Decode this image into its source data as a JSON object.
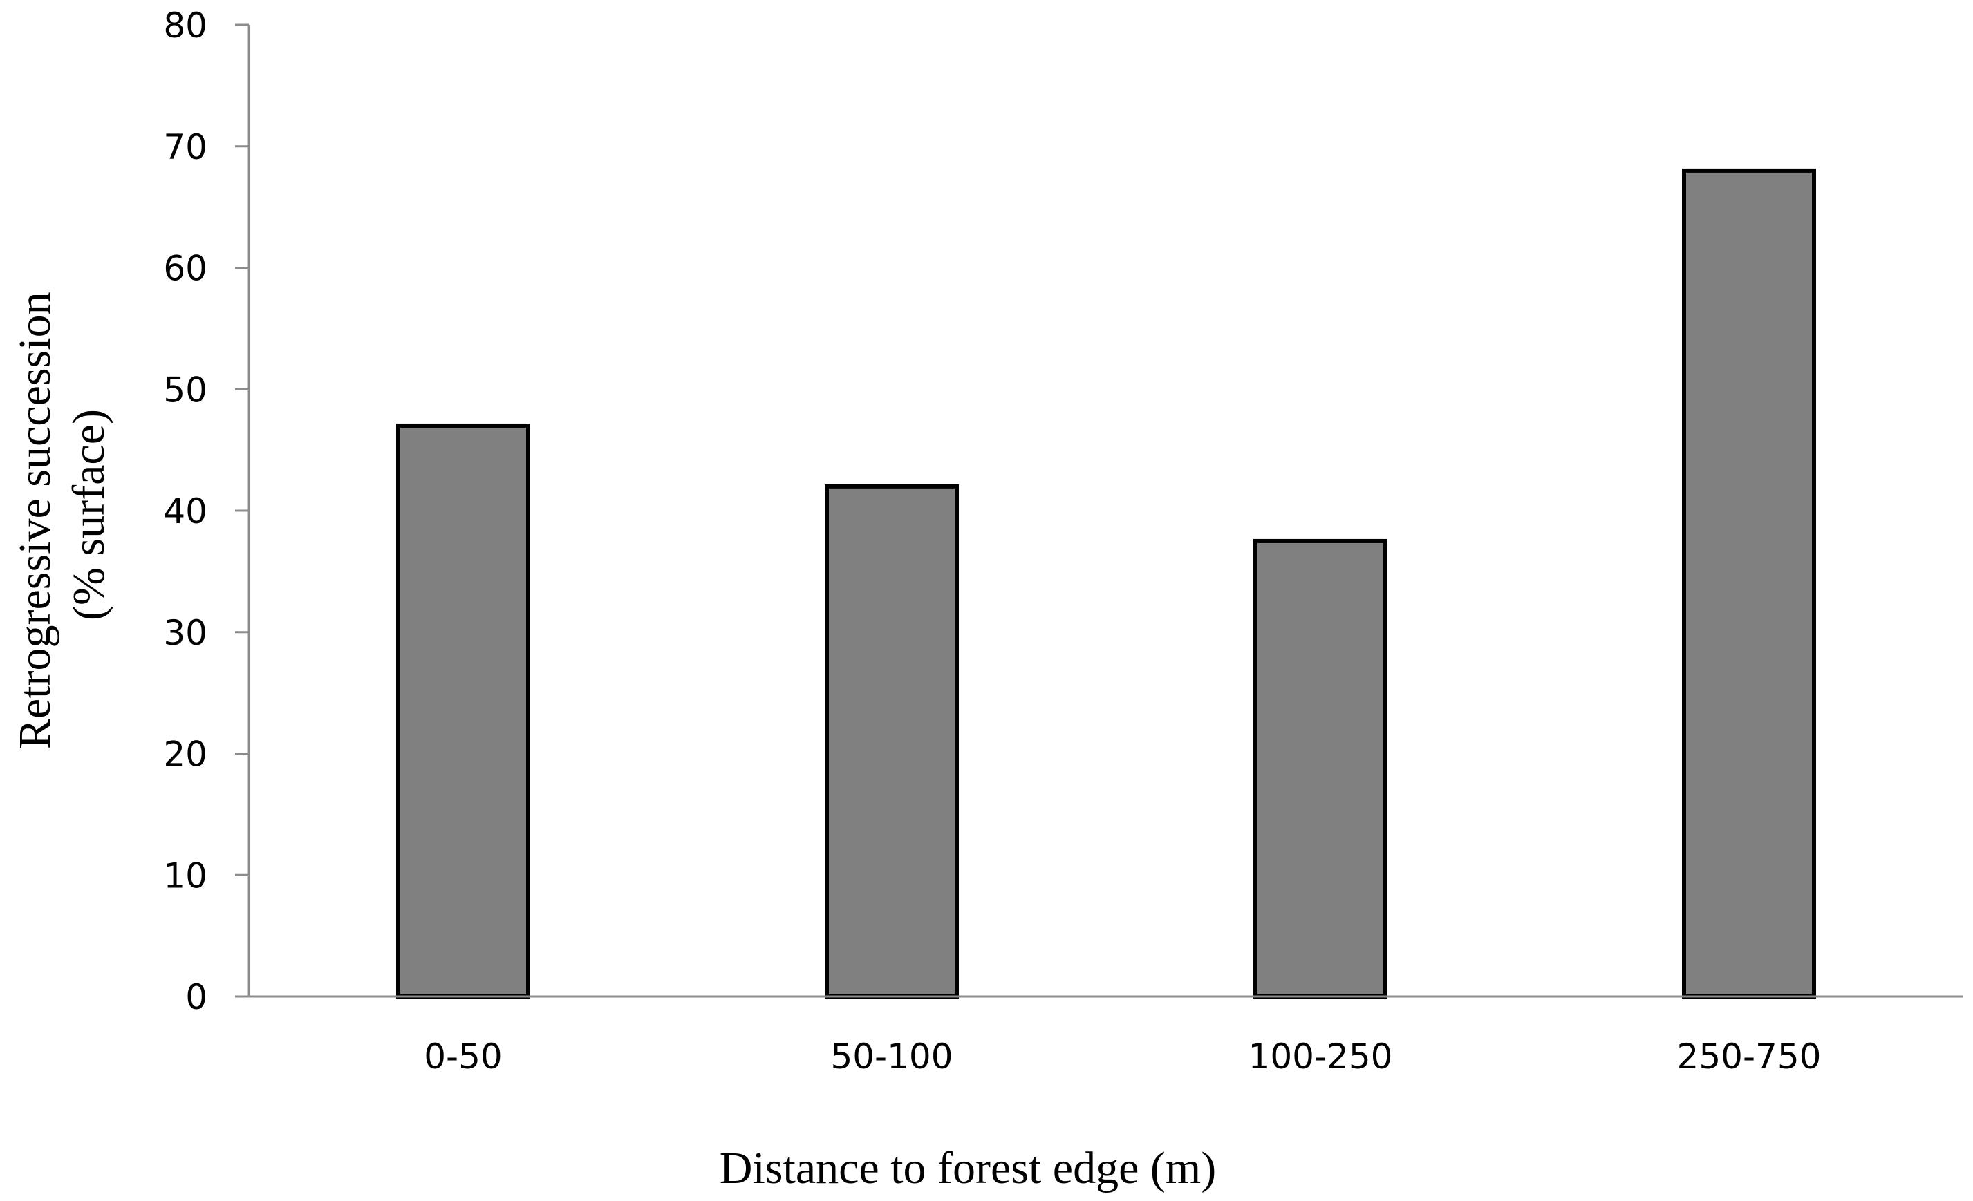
{
  "chart_data": {
    "type": "bar",
    "categories": [
      "0-50",
      "50-100",
      "100-250",
      "250-750"
    ],
    "values": [
      47,
      42,
      37.5,
      68
    ],
    "title": "",
    "xlabel": "Distance to forest edge (m)",
    "ylabel_lines": [
      "Retrogressive succession",
      "(% surface)"
    ],
    "ylim": [
      0,
      80
    ],
    "yticks": [
      0,
      10,
      20,
      30,
      40,
      50,
      60,
      70,
      80
    ],
    "grid": false,
    "legend": "none",
    "bar_color": "#808080",
    "bar_edge_color": "#000000"
  }
}
